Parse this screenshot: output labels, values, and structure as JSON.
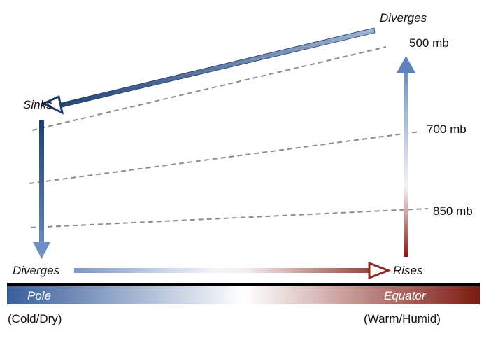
{
  "circulation": {
    "upper_diverge_label": "Diverges",
    "sinks_label": "Sinks",
    "surface_diverge_label": "Diverges",
    "rises_label": "Rises"
  },
  "pressure_levels": [
    {
      "label": "500 mb"
    },
    {
      "label": "700 mb"
    },
    {
      "label": "850 mb"
    }
  ],
  "temperature_bar": {
    "pole_label": "Pole",
    "equator_label": "Equator",
    "pole_description": "(Cold/Dry)",
    "equator_description": "(Warm/Humid)"
  },
  "colors": {
    "cold": "#3a5e98",
    "neutral": "#ffffff",
    "warm": "#8b1c14"
  }
}
